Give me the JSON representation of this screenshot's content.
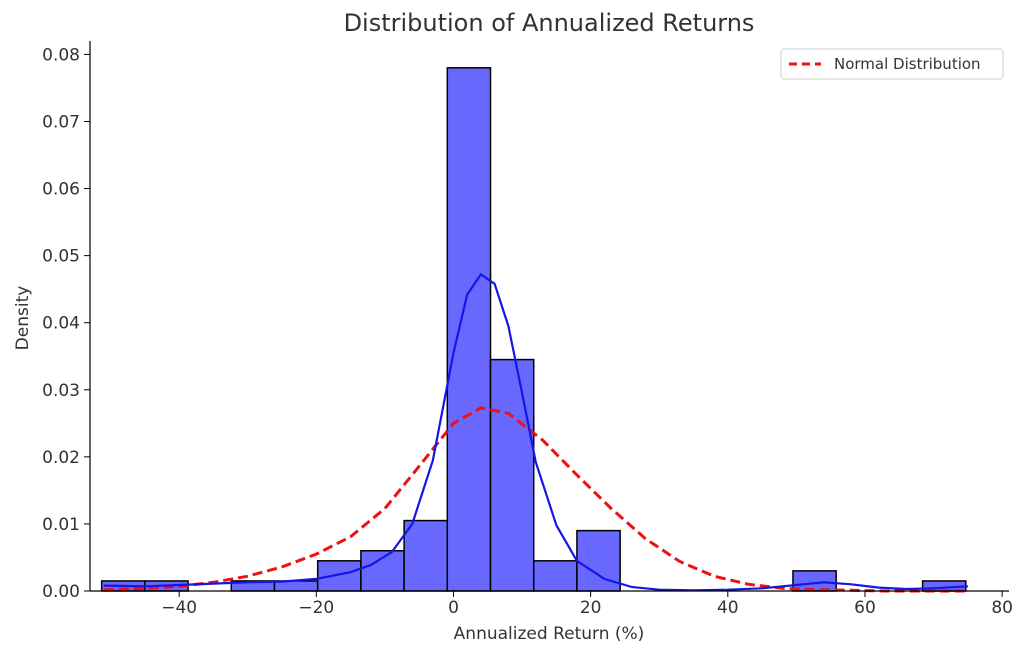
{
  "chart_data": {
    "type": "bar",
    "title": "Distribution of Annualized Returns",
    "xlabel": "Annualized Return (%)",
    "ylabel": "Density",
    "xlim": [
      -53,
      81
    ],
    "ylim": [
      0,
      0.082
    ],
    "x_ticks": [
      -40,
      -20,
      0,
      20,
      40,
      60,
      80
    ],
    "x_tick_labels": [
      "−40",
      "−20",
      "0",
      "20",
      "40",
      "60",
      "80"
    ],
    "y_ticks": [
      0.0,
      0.01,
      0.02,
      0.03,
      0.04,
      0.05,
      0.06,
      0.07,
      0.08
    ],
    "y_tick_labels": [
      "0.00",
      "0.01",
      "0.02",
      "0.03",
      "0.04",
      "0.05",
      "0.06",
      "0.07",
      "0.08"
    ],
    "grid": false,
    "legend_position": "top-right",
    "colors": {
      "bar_fill": "#6868ff",
      "bar_edge": "#000000",
      "kde_line": "#1515e6",
      "normal_line": "#ee1111",
      "text": "#333333"
    },
    "histogram": {
      "bin_edges": [
        -51.3,
        -45.0,
        -38.7,
        -32.4,
        -26.1,
        -19.8,
        -13.5,
        -7.2,
        -0.9,
        5.4,
        11.7,
        18.0,
        24.3,
        30.6,
        36.9,
        43.2,
        49.5,
        55.8,
        62.1,
        68.4,
        74.7
      ],
      "values": [
        0.0015,
        0.0015,
        0.0,
        0.0015,
        0.0015,
        0.0045,
        0.006,
        0.0105,
        0.078,
        0.0345,
        0.0045,
        0.009,
        0.0,
        0.0,
        0.0,
        0.0,
        0.003,
        0.0,
        0.0,
        0.0015
      ]
    },
    "series": [
      {
        "name": "Normal Distribution",
        "style": "dashed",
        "x": [
          -51,
          -45,
          -40,
          -35,
          -30,
          -25,
          -20,
          -15,
          -10,
          -5,
          0,
          4,
          8,
          13,
          18,
          23,
          28,
          33,
          38,
          43,
          48,
          53,
          58,
          63,
          68,
          75
        ],
        "y": [
          0.0002,
          0.0004,
          0.0007,
          0.0013,
          0.0022,
          0.0036,
          0.0055,
          0.0081,
          0.0123,
          0.0186,
          0.025,
          0.0273,
          0.0265,
          0.0225,
          0.0173,
          0.0123,
          0.0078,
          0.0044,
          0.0022,
          0.001,
          0.0004,
          0.0002,
          0.0001,
          0.0,
          0.0,
          0.0
        ]
      },
      {
        "style": "solid",
        "x": [
          -51,
          -45,
          -40,
          -35,
          -30,
          -25,
          -20,
          -15,
          -12,
          -9,
          -6,
          -3,
          0,
          2,
          4,
          6,
          8,
          10,
          12,
          15,
          18,
          22,
          26,
          30,
          35,
          40,
          45,
          50,
          54,
          58,
          62,
          66,
          70,
          75
        ],
        "y": [
          0.0008,
          0.0007,
          0.0009,
          0.0011,
          0.0013,
          0.0014,
          0.0018,
          0.0028,
          0.0039,
          0.0058,
          0.01,
          0.0195,
          0.0355,
          0.0442,
          0.0472,
          0.0458,
          0.0395,
          0.0295,
          0.0192,
          0.0098,
          0.0045,
          0.0018,
          0.0006,
          0.0002,
          0.0001,
          0.0002,
          0.0004,
          0.0009,
          0.0013,
          0.001,
          0.0005,
          0.0003,
          0.0004,
          0.0007
        ]
      }
    ]
  }
}
